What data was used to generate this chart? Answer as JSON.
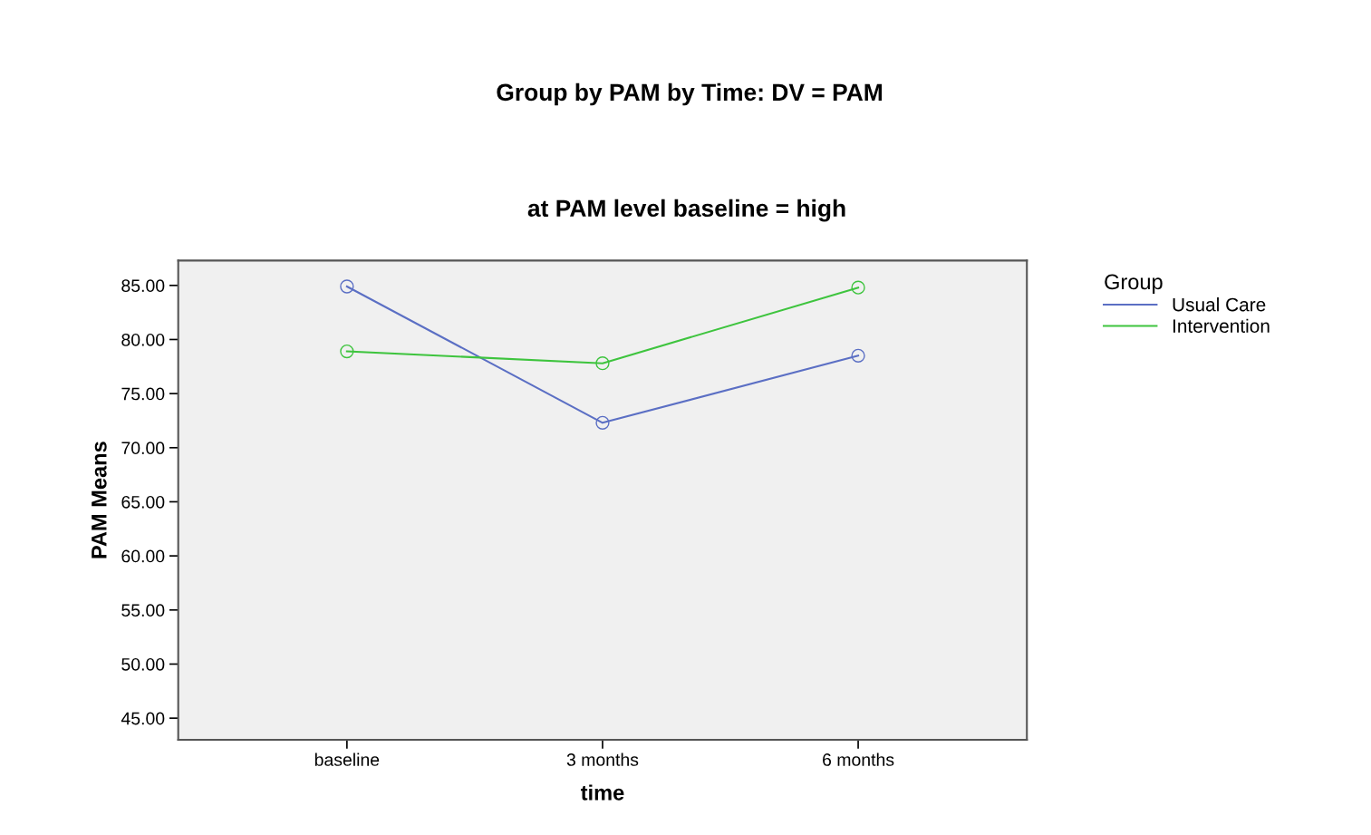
{
  "chart_data": {
    "type": "line",
    "title": "Group by PAM by Time: DV = PAM",
    "subtitle": "at PAM level baseline = high",
    "xlabel": "time",
    "ylabel": "PAM Means",
    "legend_title": "Group",
    "categories": [
      "baseline",
      "3 months",
      "6 months"
    ],
    "series": [
      {
        "name": "Usual Care",
        "color": "#5b6fc4",
        "values": [
          84.9,
          72.3,
          78.5
        ]
      },
      {
        "name": "Intervention",
        "color": "#3ec43e",
        "values": [
          78.9,
          77.8,
          84.8
        ]
      }
    ],
    "ylim": [
      43.0,
      87.3
    ],
    "yticks": [
      {
        "value": 45,
        "label": "45.00"
      },
      {
        "value": 50,
        "label": "50.00"
      },
      {
        "value": 55,
        "label": "55.00"
      },
      {
        "value": 60,
        "label": "60.00"
      },
      {
        "value": 65,
        "label": "65.00"
      },
      {
        "value": 70,
        "label": "70.00"
      },
      {
        "value": 75,
        "label": "75.00"
      },
      {
        "value": 80,
        "label": "80.00"
      },
      {
        "value": 85,
        "label": "85.00"
      }
    ],
    "grid": false,
    "legend": "top right",
    "marker": "circle",
    "line_style": "solid"
  }
}
